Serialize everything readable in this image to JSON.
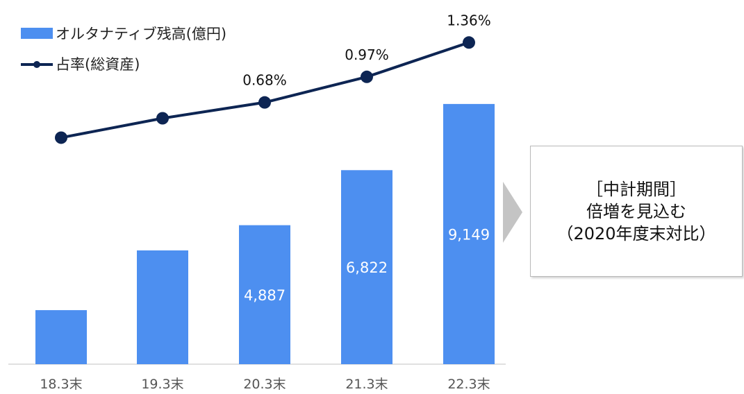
{
  "chart_data": {
    "type": "bar+line",
    "categories": [
      "18.3末",
      "19.3末",
      "20.3末",
      "21.3末",
      "22.3末"
    ],
    "series": [
      {
        "name": "オルタナティブ残高(億円)",
        "type": "bar",
        "values": [
          1900,
          4000,
          4887,
          6822,
          9149
        ],
        "data_labels": [
          "",
          "",
          "4,887",
          "6,822",
          "9,149"
        ]
      },
      {
        "name": "占率(総資産)",
        "type": "line",
        "values": [
          0.28,
          0.5,
          0.68,
          0.97,
          1.36
        ],
        "data_labels": [
          "",
          "",
          "0.68%",
          "0.97%",
          "1.36%"
        ]
      }
    ],
    "colors": {
      "bar": "#4d8ff0",
      "line": "#0d2553"
    },
    "legend_position": "top-left",
    "grid": false
  },
  "callout": {
    "line1": "［中計期間］",
    "line2": "倍増を見込む",
    "line3": "（2020年度末対比）"
  }
}
